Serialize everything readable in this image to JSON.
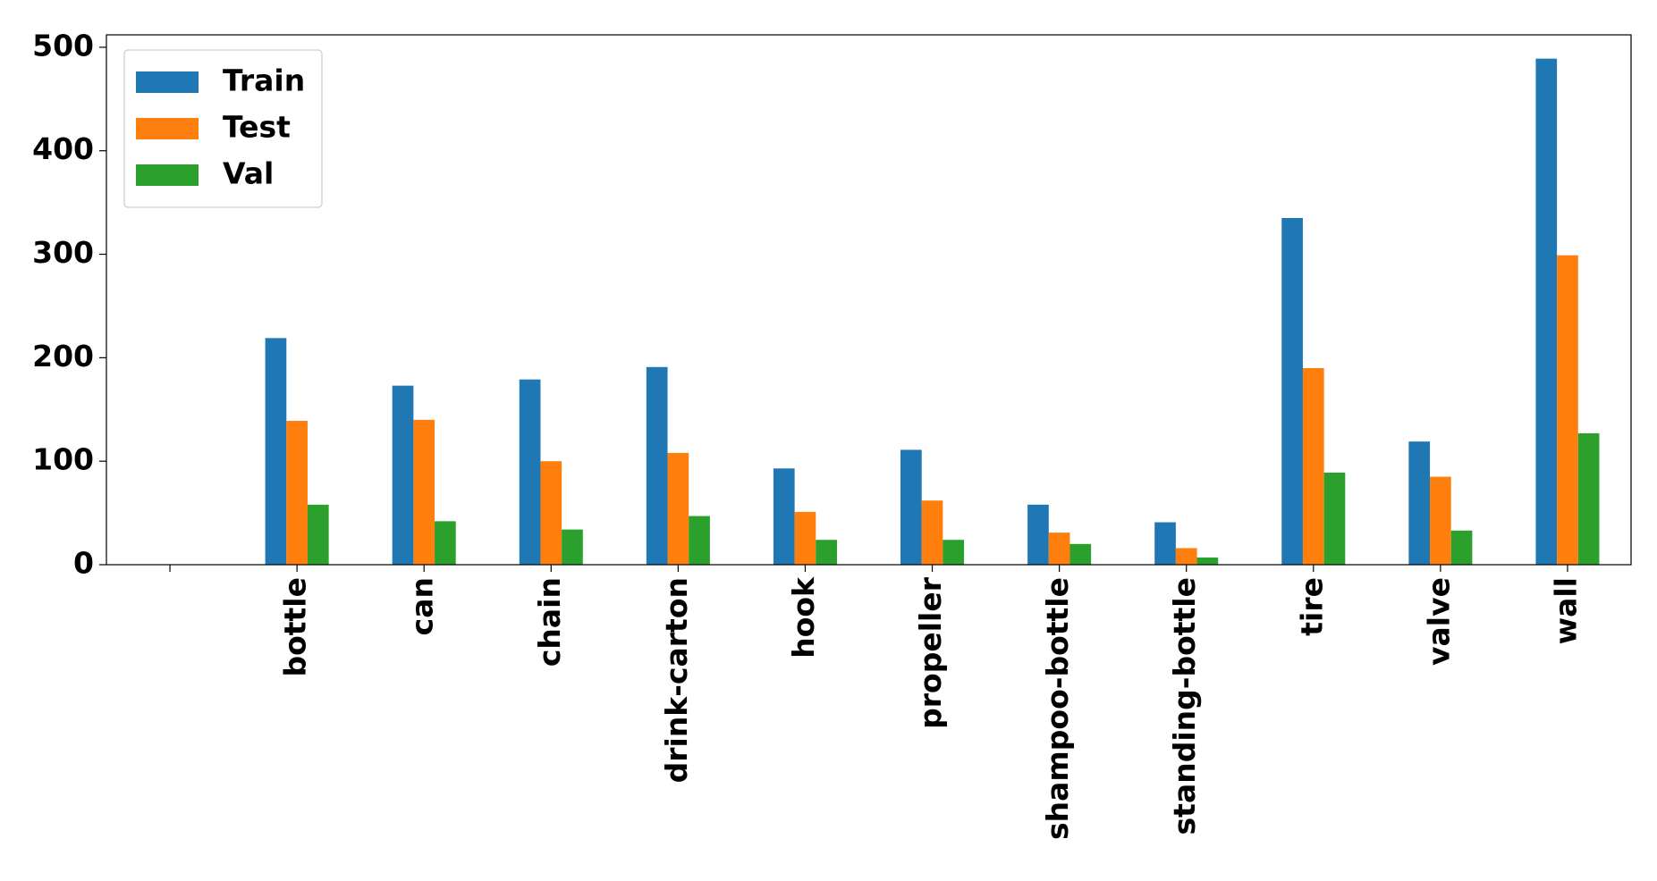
{
  "chart_data": {
    "type": "bar",
    "categories": [
      null,
      "bottle",
      "can",
      "chain",
      "drink-carton",
      "hook",
      "propeller",
      "shampoo-bottle",
      "standing-bottle",
      "tire",
      "valve",
      "wall"
    ],
    "series": [
      {
        "name": "Train",
        "color": "#1f77b4",
        "values": [
          0,
          219,
          173,
          179,
          191,
          93,
          111,
          58,
          41,
          335,
          119,
          489
        ]
      },
      {
        "name": "Test",
        "color": "#ff7f0e",
        "values": [
          0,
          139,
          140,
          100,
          108,
          51,
          62,
          31,
          16,
          190,
          85,
          299
        ]
      },
      {
        "name": "Val",
        "color": "#2ca02c",
        "values": [
          0,
          58,
          42,
          34,
          47,
          24,
          24,
          20,
          7,
          89,
          33,
          127
        ]
      }
    ],
    "ylim": [
      0,
      512
    ],
    "yticks": [
      0,
      100,
      200,
      300,
      400,
      500
    ],
    "legend": "upper left"
  }
}
